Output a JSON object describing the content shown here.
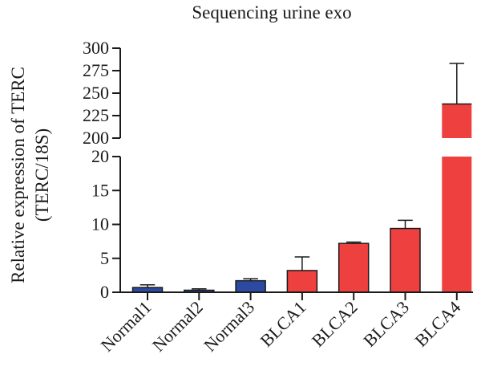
{
  "chart_data": {
    "type": "bar",
    "title": "Sequencing urine exo",
    "ylabel": [
      "Relative expression of TERC",
      "(TERC/18S)"
    ],
    "y_axis_break": {
      "lower_range": [
        0,
        20
      ],
      "upper_range": [
        200,
        300
      ],
      "lower_ticks": [
        0,
        5,
        10,
        15,
        20
      ],
      "upper_ticks": [
        200,
        225,
        250,
        275,
        300
      ]
    },
    "categories": [
      "Normal1",
      "Normal2",
      "Normal3",
      "BLCA1",
      "BLCA2",
      "BLCA3",
      "BLCA4"
    ],
    "values": [
      0.7,
      0.3,
      1.7,
      3.2,
      7.2,
      9.4,
      238
    ],
    "error_upper": [
      0.4,
      0.2,
      0.3,
      2.0,
      0.2,
      1.2,
      45
    ],
    "colors": [
      "#2b4aa0",
      "#2b4aa0",
      "#2b4aa0",
      "#ef4040",
      "#ef4040",
      "#ef4040",
      "#ef4040"
    ],
    "grid": false,
    "legend": "none"
  }
}
